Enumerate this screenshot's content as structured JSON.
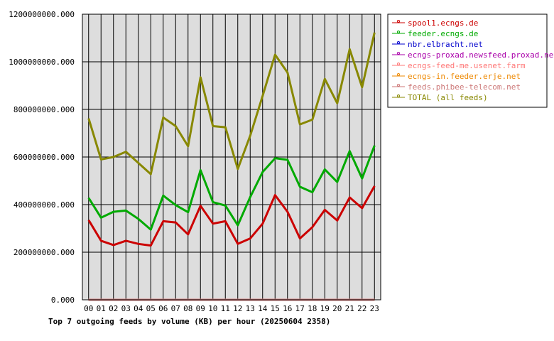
{
  "chart_data": {
    "type": "line",
    "title": "Top 7 outgoing feeds by volume (KB) per hour (20250604 2358)",
    "categories": [
      "00",
      "01",
      "02",
      "03",
      "04",
      "05",
      "06",
      "07",
      "08",
      "09",
      "10",
      "11",
      "12",
      "13",
      "14",
      "15",
      "16",
      "17",
      "18",
      "19",
      "20",
      "21",
      "22",
      "23"
    ],
    "y_tick_labels": [
      "0.000",
      "200000000.000",
      "400000000.000",
      "600000000.000",
      "800000000.000",
      "1000000000.000",
      "1200000000.000"
    ],
    "ylim": [
      0,
      1200000000
    ],
    "grid": true,
    "legend_position": "right",
    "series": [
      {
        "name": "spool1.ecngs.de",
        "color": "#cc0000",
        "values": [
          335000000,
          248000000,
          230000000,
          248000000,
          235000000,
          228000000,
          330000000,
          325000000,
          275000000,
          395000000,
          320000000,
          330000000,
          235000000,
          258000000,
          320000000,
          440000000,
          370000000,
          258000000,
          305000000,
          378000000,
          333000000,
          430000000,
          385000000,
          478000000
        ]
      },
      {
        "name": "feeder.ecngs.de",
        "color": "#00aa00",
        "values": [
          428000000,
          345000000,
          370000000,
          375000000,
          340000000,
          295000000,
          438000000,
          398000000,
          368000000,
          545000000,
          410000000,
          396000000,
          313000000,
          432000000,
          537000000,
          595000000,
          588000000,
          475000000,
          452000000,
          548000000,
          495000000,
          625000000,
          510000000,
          648000000
        ]
      },
      {
        "name": "nbr.elbracht.net",
        "color": "#0000cc",
        "values": [
          0,
          0,
          0,
          0,
          0,
          0,
          0,
          0,
          0,
          0,
          0,
          0,
          0,
          0,
          0,
          0,
          0,
          0,
          0,
          0,
          0,
          0,
          0,
          0
        ]
      },
      {
        "name": "ecngs-proxad.newsfeed.proxad.net",
        "color": "#aa00aa",
        "values": [
          0,
          0,
          0,
          0,
          0,
          0,
          0,
          0,
          0,
          0,
          0,
          0,
          0,
          0,
          0,
          0,
          0,
          0,
          0,
          0,
          0,
          0,
          0,
          0
        ]
      },
      {
        "name": "ecngs-feed-me.usenet.farm",
        "color": "#ff7777",
        "values": [
          0,
          0,
          0,
          0,
          0,
          0,
          0,
          0,
          0,
          0,
          0,
          0,
          0,
          0,
          0,
          0,
          0,
          0,
          0,
          0,
          0,
          0,
          0,
          0
        ]
      },
      {
        "name": "ecngs-in.feeder.erje.net",
        "color": "#ee8800",
        "values": [
          0,
          0,
          0,
          0,
          0,
          0,
          0,
          0,
          0,
          0,
          0,
          0,
          0,
          0,
          0,
          0,
          0,
          0,
          0,
          0,
          0,
          0,
          0,
          0
        ]
      },
      {
        "name": "feeds.phibee-telecom.net",
        "color": "#cc7777",
        "values": [
          0,
          0,
          0,
          0,
          0,
          0,
          0,
          0,
          0,
          0,
          0,
          0,
          0,
          0,
          0,
          0,
          0,
          0,
          0,
          0,
          0,
          0,
          0,
          0
        ]
      },
      {
        "name": "TOTAL (all feeds)",
        "color": "#888800",
        "values": [
          762000000,
          590000000,
          600000000,
          622000000,
          575000000,
          528000000,
          766000000,
          730000000,
          645000000,
          935000000,
          730000000,
          725000000,
          550000000,
          690000000,
          857000000,
          1030000000,
          955000000,
          737000000,
          757000000,
          928000000,
          826000000,
          1053000000,
          893000000,
          1123000000
        ]
      }
    ]
  }
}
